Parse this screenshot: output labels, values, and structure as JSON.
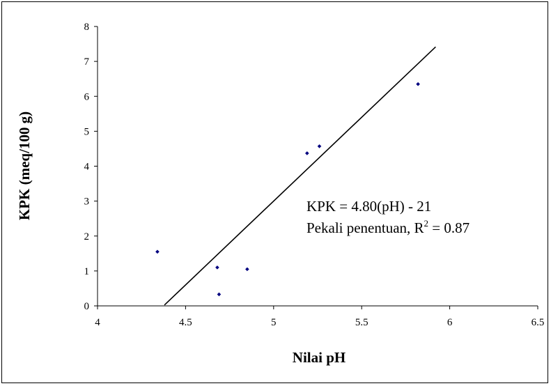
{
  "chart_data": {
    "type": "scatter",
    "title": "",
    "xlabel": "Nilai pH",
    "ylabel": "KPK (meq/100 g)",
    "xlim": [
      4,
      6.5
    ],
    "ylim": [
      0,
      8
    ],
    "xticks": [
      "4",
      "4.5",
      "5",
      "5.5",
      "6",
      "6.5"
    ],
    "yticks": [
      "0",
      "1",
      "2",
      "3",
      "4",
      "5",
      "6",
      "7",
      "8"
    ],
    "grid": false,
    "points": [
      {
        "x": 4.34,
        "y": 1.55
      },
      {
        "x": 4.68,
        "y": 1.1
      },
      {
        "x": 4.69,
        "y": 0.33
      },
      {
        "x": 4.85,
        "y": 1.05
      },
      {
        "x": 5.19,
        "y": 4.37
      },
      {
        "x": 5.26,
        "y": 4.57
      },
      {
        "x": 5.82,
        "y": 6.35
      }
    ],
    "trendline": {
      "slope": 4.8,
      "intercept": -21,
      "x_range": [
        4.38,
        5.92
      ]
    },
    "point_color": "#00007f",
    "annotation": {
      "equation": "KPK = 4.80(pH) - 21",
      "r2_prefix": "Pekali penentuan, R",
      "r2_sup": "2",
      "r2_suffix": " = 0.87"
    }
  }
}
